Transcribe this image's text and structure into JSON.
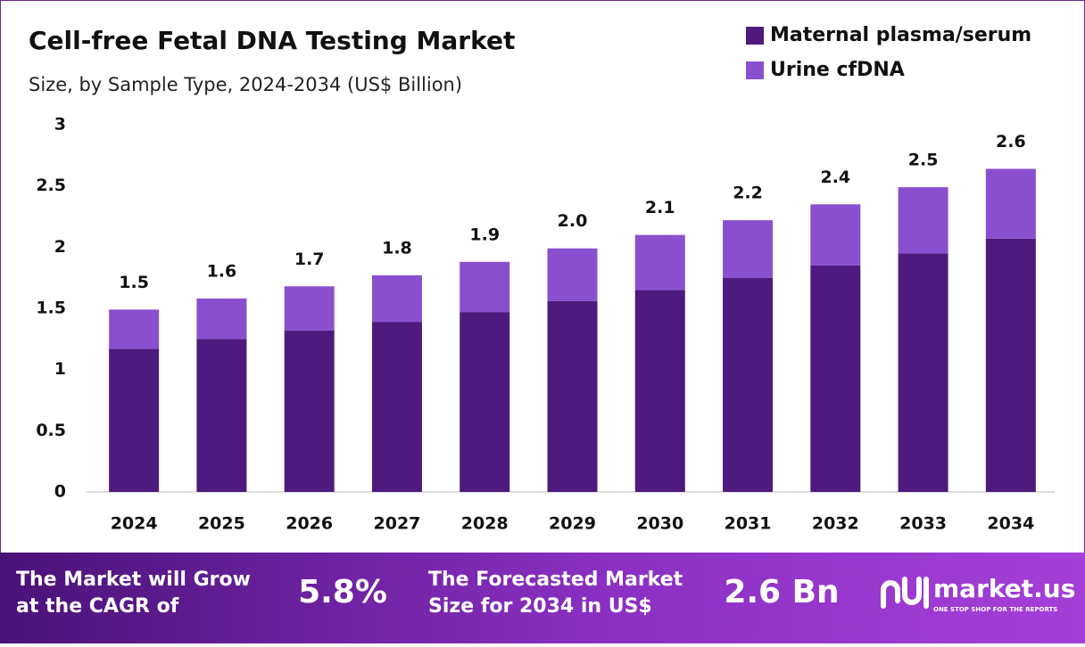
{
  "chart_data": {
    "type": "stacked-bar",
    "title": "Cell-free Fetal DNA Testing Market",
    "subtitle": "Size, by Sample Type, 2024-2034 (US$ Billion)",
    "categories": [
      "2024",
      "2025",
      "2026",
      "2027",
      "2028",
      "2029",
      "2030",
      "2031",
      "2032",
      "2033",
      "2034"
    ],
    "series": [
      {
        "name": "Maternal plasma/serum",
        "color": "#4e1a7e",
        "values": [
          1.17,
          1.25,
          1.32,
          1.39,
          1.47,
          1.56,
          1.65,
          1.75,
          1.85,
          1.95,
          2.07
        ]
      },
      {
        "name": "Urine cfDNA",
        "color": "#8a4fcf",
        "values": [
          0.32,
          0.33,
          0.36,
          0.38,
          0.41,
          0.43,
          0.45,
          0.47,
          0.5,
          0.54,
          0.57
        ]
      }
    ],
    "total_labels": [
      "1.5",
      "1.6",
      "1.7",
      "1.8",
      "1.9",
      "2.0",
      "2.1",
      "2.2",
      "2.4",
      "2.5",
      "2.6"
    ],
    "ylim": [
      0,
      3
    ],
    "yticks": [
      0,
      0.5,
      1,
      1.5,
      2,
      2.5,
      3
    ],
    "grid": false,
    "legend": "top-right"
  },
  "footer": {
    "cagr_text": [
      "The Market will Grow",
      "at the CAGR of"
    ],
    "cagr_value": "5.8%",
    "forecast_text": [
      "The Forecasted Market",
      "Size for 2034 in US$"
    ],
    "forecast_value": "2.6 Bn",
    "brand": "market.us",
    "tagline": "ONE STOP SHOP FOR THE REPORTS"
  }
}
